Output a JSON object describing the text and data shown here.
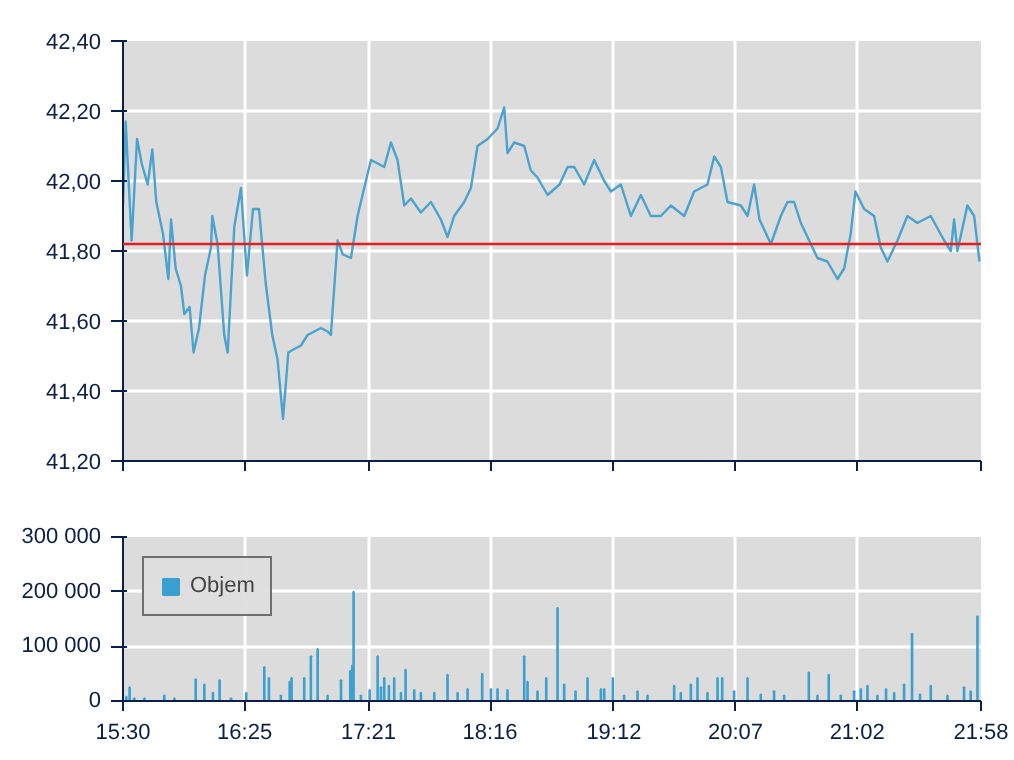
{
  "chart_data": [
    {
      "type": "line",
      "xlim": [
        15.5,
        21.9667
      ],
      "xticks": [
        {
          "value": 15.5,
          "label": null
        },
        {
          "value": 16.4167,
          "label": null
        },
        {
          "value": 17.35,
          "label": null
        },
        {
          "value": 18.2667,
          "label": null
        },
        {
          "value": 19.2,
          "label": null
        },
        {
          "value": 20.1167,
          "label": null
        },
        {
          "value": 21.0333,
          "label": null
        },
        {
          "value": 21.9667,
          "label": null
        }
      ],
      "ylim": [
        41.2,
        42.4
      ],
      "yticks": [
        {
          "value": 41.2,
          "label": "41,20"
        },
        {
          "value": 41.4,
          "label": "41,40"
        },
        {
          "value": 41.6,
          "label": "41,60"
        },
        {
          "value": 41.8,
          "label": "41,80"
        },
        {
          "value": 42.0,
          "label": "42,00"
        },
        {
          "value": 42.2,
          "label": "42,20"
        },
        {
          "value": 42.4,
          "label": "42,40"
        }
      ],
      "grid": true,
      "tick_labels": "y",
      "ref_lines": [
        {
          "axis": "y",
          "value": 41.82,
          "color": "#e02020"
        }
      ],
      "series": [
        {
          "color": "#4aa3cf",
          "x": [
            15.5,
            15.52,
            15.565,
            15.606,
            15.641,
            15.686,
            15.721,
            15.751,
            15.801,
            15.842,
            15.862,
            15.897,
            15.937,
            15.962,
            16.002,
            16.032,
            16.073,
            16.118,
            16.163,
            16.173,
            16.213,
            16.263,
            16.289,
            16.339,
            16.389,
            16.434,
            16.48,
            16.525,
            16.575,
            16.625,
            16.665,
            16.706,
            16.746,
            16.791,
            16.841,
            16.891,
            16.942,
            16.992,
            17.042,
            17.067,
            17.117,
            17.157,
            17.218,
            17.268,
            17.318,
            17.369,
            17.419,
            17.469,
            17.519,
            17.569,
            17.62,
            17.67,
            17.745,
            17.821,
            17.896,
            17.946,
            17.996,
            18.072,
            18.122,
            18.172,
            18.248,
            18.323,
            18.373,
            18.398,
            18.449,
            18.524,
            18.574,
            18.624,
            18.7,
            18.79,
            18.851,
            18.901,
            18.976,
            19.051,
            19.127,
            19.177,
            19.252,
            19.328,
            19.403,
            19.478,
            19.554,
            19.629,
            19.73,
            19.805,
            19.905,
            19.956,
            20.006,
            20.056,
            20.157,
            20.207,
            20.257,
            20.297,
            20.383,
            20.458,
            20.508,
            20.558,
            20.609,
            20.684,
            20.734,
            20.809,
            20.885,
            20.935,
            20.985,
            21.02,
            21.086,
            21.161,
            21.211,
            21.262,
            21.337,
            21.412,
            21.487,
            21.588,
            21.689,
            21.739,
            21.764,
            21.789,
            21.864,
            21.915,
            21.955
          ],
          "values": [
            41.93,
            42.17,
            41.83,
            42.12,
            42.05,
            41.99,
            42.09,
            41.94,
            41.85,
            41.72,
            41.89,
            41.75,
            41.7,
            41.62,
            41.64,
            41.51,
            41.58,
            41.73,
            41.81,
            41.9,
            41.82,
            41.56,
            41.51,
            41.87,
            41.98,
            41.73,
            41.92,
            41.92,
            41.71,
            41.56,
            41.49,
            41.32,
            41.51,
            41.52,
            41.53,
            41.56,
            41.57,
            41.58,
            41.57,
            41.56,
            41.83,
            41.79,
            41.78,
            41.9,
            41.98,
            42.06,
            42.05,
            42.04,
            42.11,
            42.06,
            41.93,
            41.95,
            41.91,
            41.94,
            41.89,
            41.84,
            41.9,
            41.94,
            41.98,
            42.1,
            42.12,
            42.15,
            42.21,
            42.08,
            42.11,
            42.1,
            42.03,
            42.01,
            41.96,
            41.99,
            42.04,
            42.04,
            41.99,
            42.06,
            42.0,
            41.97,
            41.99,
            41.9,
            41.96,
            41.9,
            41.9,
            41.93,
            41.9,
            41.97,
            41.99,
            42.07,
            42.04,
            41.94,
            41.93,
            41.9,
            41.99,
            41.89,
            41.82,
            41.9,
            41.94,
            41.94,
            41.88,
            41.82,
            41.78,
            41.77,
            41.72,
            41.75,
            41.85,
            41.97,
            41.92,
            41.9,
            41.81,
            41.77,
            41.83,
            41.9,
            41.88,
            41.9,
            41.83,
            41.8,
            41.89,
            41.8,
            41.93,
            41.9,
            41.77
          ]
        }
      ]
    },
    {
      "type": "bar",
      "xlim": [
        15.5,
        21.9667
      ],
      "xticks": [
        {
          "value": 15.5,
          "label": "15:30"
        },
        {
          "value": 16.4167,
          "label": "16:25"
        },
        {
          "value": 17.35,
          "label": "17:21"
        },
        {
          "value": 18.2667,
          "label": "18:16"
        },
        {
          "value": 19.2,
          "label": "19:12"
        },
        {
          "value": 20.1167,
          "label": "20:07"
        },
        {
          "value": 21.0333,
          "label": "21:02"
        },
        {
          "value": 21.9667,
          "label": "21:58"
        }
      ],
      "ylim": [
        0,
        300000
      ],
      "yticks": [
        {
          "value": 0,
          "label": "0"
        },
        {
          "value": 100000,
          "label": "100 000"
        },
        {
          "value": 200000,
          "label": "200 000"
        },
        {
          "value": 300000,
          "label": "300 000"
        }
      ],
      "grid": true,
      "legend": "top left",
      "series": [
        {
          "name": "Objem",
          "color": "#3aa0d0",
          "x": [
            15.525,
            15.55,
            15.585,
            15.661,
            15.811,
            15.887,
            16.048,
            16.113,
            16.178,
            16.228,
            16.314,
            16.429,
            16.565,
            16.6,
            16.69,
            16.756,
            16.771,
            16.866,
            16.916,
            16.967,
            17.042,
            17.143,
            17.213,
            17.228,
            17.238,
            17.293,
            17.359,
            17.419,
            17.444,
            17.469,
            17.504,
            17.544,
            17.595,
            17.63,
            17.695,
            17.745,
            17.846,
            17.946,
            18.022,
            18.097,
            18.207,
            18.273,
            18.323,
            18.398,
            18.524,
            18.549,
            18.624,
            18.69,
            18.775,
            18.825,
            18.911,
            19.001,
            19.102,
            19.127,
            19.192,
            19.277,
            19.378,
            19.453,
            19.654,
            19.704,
            19.78,
            19.83,
            19.905,
            19.981,
            20.016,
            20.106,
            20.207,
            20.307,
            20.407,
            20.483,
            20.669,
            20.734,
            20.819,
            20.91,
            21.01,
            21.061,
            21.111,
            21.186,
            21.251,
            21.312,
            21.387,
            21.447,
            21.507,
            21.588,
            21.714,
            21.839,
            21.889,
            21.94
          ],
          "values": [
            8000,
            25000,
            5000,
            5000,
            10000,
            5000,
            40000,
            30000,
            15000,
            38000,
            5000,
            15000,
            62000,
            42000,
            10000,
            35000,
            42000,
            42000,
            82000,
            95000,
            10000,
            38000,
            55000,
            65000,
            200000,
            10000,
            20000,
            82000,
            25000,
            42000,
            28000,
            42000,
            15000,
            57000,
            20000,
            15000,
            15000,
            48000,
            15000,
            22000,
            50000,
            22000,
            22000,
            20000,
            82000,
            35000,
            18000,
            42000,
            170000,
            30000,
            18000,
            42000,
            22000,
            22000,
            42000,
            10000,
            18000,
            10000,
            28000,
            15000,
            30000,
            42000,
            15000,
            42000,
            42000,
            18000,
            42000,
            12000,
            18000,
            10000,
            52000,
            10000,
            48000,
            10000,
            18000,
            22000,
            28000,
            10000,
            22000,
            15000,
            30000,
            123000,
            12000,
            28000,
            10000,
            25000,
            18000,
            155000
          ]
        }
      ]
    }
  ]
}
